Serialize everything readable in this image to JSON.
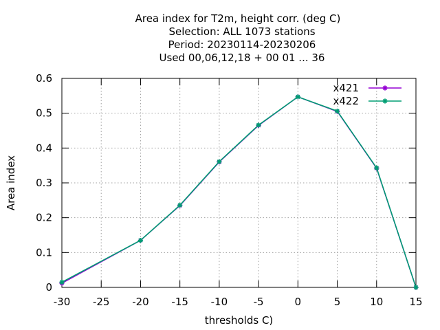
{
  "chart_data": {
    "type": "line",
    "title_lines": [
      "Area index  for T2m, height corr. (deg C)",
      "Selection: ALL   1073 stations",
      "Period: 20230114-20230206",
      "Used  00,06,12,18 + 00 01 ... 36"
    ],
    "xlabel": "thresholds C)",
    "ylabel": "Area index",
    "xlim": [
      -30,
      15
    ],
    "ylim": [
      0,
      0.6
    ],
    "xticks": [
      -30,
      -25,
      -20,
      -15,
      -10,
      -5,
      0,
      5,
      10,
      15
    ],
    "yticks": [
      0,
      0.1,
      0.2,
      0.3,
      0.4,
      0.5,
      0.6
    ],
    "ytick_labels": [
      "0",
      "0.1",
      "0.2",
      "0.3",
      "0.4",
      "0.5",
      "0.6"
    ],
    "grid": true,
    "legend_position": "top-right",
    "series": [
      {
        "name": "x421",
        "color": "#9400d3",
        "x": [
          -30,
          -20,
          -15,
          -10,
          -5,
          0,
          5,
          10,
          15
        ],
        "y": [
          0.012,
          0.135,
          0.235,
          0.36,
          0.465,
          0.547,
          0.505,
          0.342,
          0.0
        ]
      },
      {
        "name": "x422",
        "color": "#009e73",
        "x": [
          -30,
          -20,
          -15,
          -10,
          -5,
          0,
          5,
          10,
          15
        ],
        "y": [
          0.015,
          0.135,
          0.236,
          0.361,
          0.466,
          0.547,
          0.506,
          0.343,
          0.0
        ]
      }
    ]
  }
}
